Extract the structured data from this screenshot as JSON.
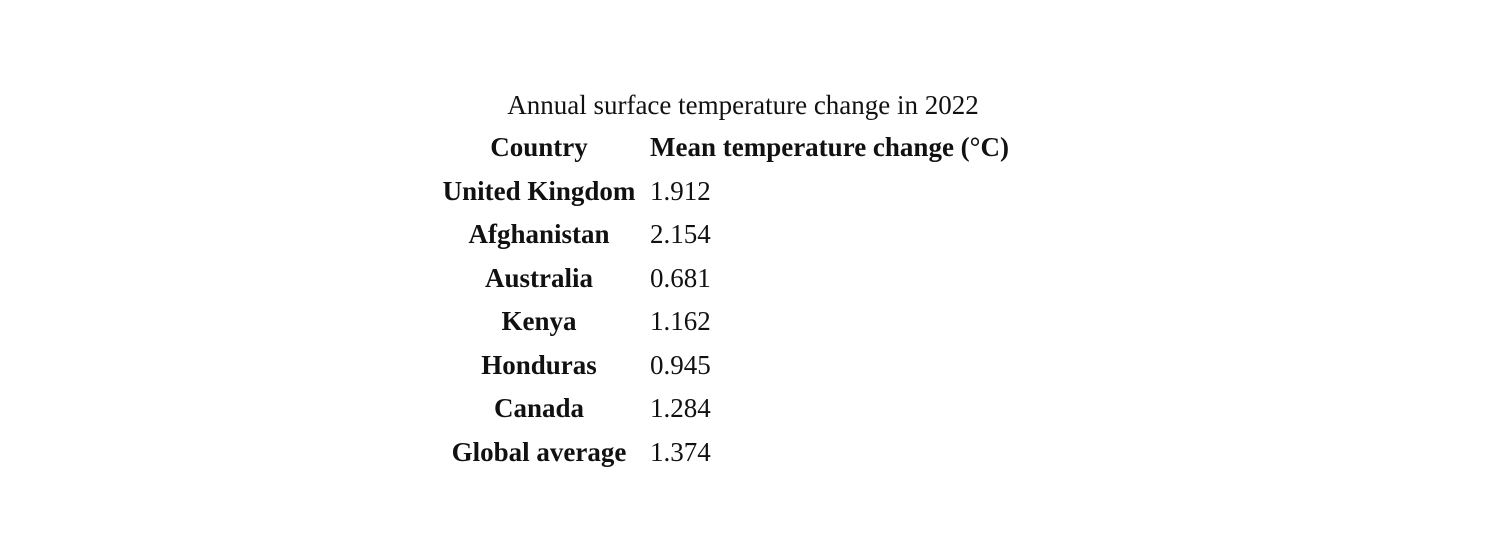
{
  "table": {
    "caption": "Annual surface temperature change in 2022",
    "headers": {
      "country": "Country",
      "value": "Mean temperature change (°C)"
    },
    "rows": [
      {
        "country": "United Kingdom",
        "value": "1.912"
      },
      {
        "country": "Afghanistan",
        "value": "2.154"
      },
      {
        "country": "Australia",
        "value": "0.681"
      },
      {
        "country": "Kenya",
        "value": "1.162"
      },
      {
        "country": "Honduras",
        "value": "0.945"
      },
      {
        "country": "Canada",
        "value": "1.284"
      },
      {
        "country": "Global average",
        "value": "1.374"
      }
    ]
  }
}
